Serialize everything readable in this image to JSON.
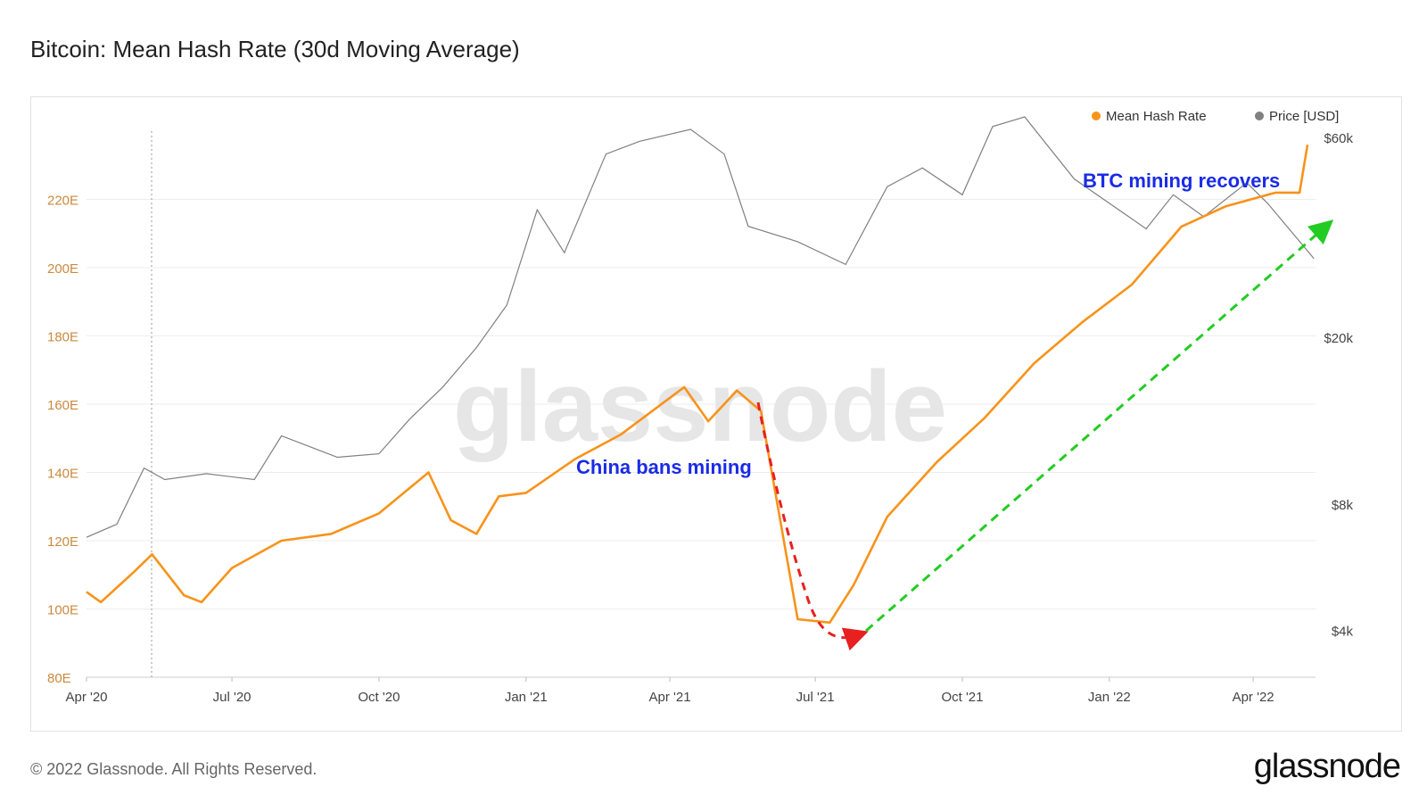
{
  "title": "Bitcoin: Mean Hash Rate (30d Moving Average)",
  "footer": "© 2022 Glassnode. All Rights Reserved.",
  "brand": "glassnode",
  "watermark": "glassnode",
  "colors": {
    "hash_rate": "#f7931a",
    "price": "#808080",
    "left_axis": "#c98a3e",
    "annotation_text": "#1a2be6",
    "red_arrow": "#e82020",
    "green_arrow": "#22cc22"
  },
  "chart_data": {
    "type": "line",
    "x_ticks": [
      "Apr '20",
      "Jul '20",
      "Oct '20",
      "Jan '21",
      "Apr '21",
      "Jul '21",
      "Oct '21",
      "Jan '22",
      "Apr '22"
    ],
    "xlim": [
      "2020-04-01",
      "2022-05-10"
    ],
    "y_left": {
      "ticks": [
        "80E",
        "100E",
        "120E",
        "140E",
        "160E",
        "180E",
        "200E",
        "220E"
      ],
      "ylim": [
        80,
        240
      ]
    },
    "y_right": {
      "ticks": [
        "$4k",
        "$8k",
        "$20k",
        "$60k"
      ],
      "scale": "log"
    },
    "legend": {
      "position": "top-right",
      "entries": [
        "Mean Hash Rate",
        "Price [USD]"
      ]
    },
    "grid": true,
    "series": [
      {
        "name": "Mean Hash Rate",
        "axis": "left",
        "x": [
          "2020-04-01",
          "2020-04-10",
          "2020-05-01",
          "2020-05-12",
          "2020-06-01",
          "2020-06-12",
          "2020-07-01",
          "2020-08-01",
          "2020-09-01",
          "2020-10-01",
          "2020-11-01",
          "2020-11-15",
          "2020-12-01",
          "2020-12-15",
          "2021-01-01",
          "2021-02-01",
          "2021-03-01",
          "2021-04-10",
          "2021-04-25",
          "2021-05-13",
          "2021-05-28",
          "2021-06-20",
          "2021-07-10",
          "2021-07-25",
          "2021-08-15",
          "2021-09-15",
          "2021-10-15",
          "2021-11-15",
          "2021-12-15",
          "2022-01-15",
          "2022-02-15",
          "2022-03-15",
          "2022-04-15",
          "2022-04-30",
          "2022-05-05"
        ],
        "values": [
          105,
          102,
          111,
          116,
          104,
          102,
          112,
          120,
          122,
          128,
          140,
          126,
          122,
          133,
          134,
          144,
          151,
          165,
          155,
          164,
          158,
          97,
          96,
          107,
          127,
          143,
          156,
          172,
          184,
          195,
          212,
          218,
          222,
          222,
          236
        ]
      },
      {
        "name": "Price [USD]",
        "axis": "right",
        "x": [
          "2020-04-01",
          "2020-04-20",
          "2020-05-07",
          "2020-05-20",
          "2020-06-15",
          "2020-07-15",
          "2020-08-01",
          "2020-09-05",
          "2020-10-01",
          "2020-10-20",
          "2020-11-10",
          "2020-12-01",
          "2020-12-20",
          "2021-01-08",
          "2021-01-25",
          "2021-02-20",
          "2021-03-13",
          "2021-04-14",
          "2021-05-05",
          "2021-05-20",
          "2021-06-20",
          "2021-07-20",
          "2021-08-15",
          "2021-09-06",
          "2021-10-01",
          "2021-10-20",
          "2021-11-09",
          "2021-12-10",
          "2022-01-24",
          "2022-02-10",
          "2022-03-01",
          "2022-03-28",
          "2022-04-10",
          "2022-05-09"
        ],
        "values": [
          6700,
          7200,
          9800,
          9200,
          9500,
          9200,
          11700,
          10400,
          10600,
          12800,
          15300,
          19000,
          24000,
          40500,
          32000,
          55000,
          59000,
          63000,
          55000,
          37000,
          34000,
          30000,
          46000,
          51000,
          44000,
          64000,
          67500,
          48000,
          36500,
          44000,
          39000,
          47000,
          42000,
          31000
        ]
      }
    ],
    "annotations": [
      {
        "text": "China bans mining",
        "arrow": "red dashed, from mid-2021 peak down to trough"
      },
      {
        "text": "BTC mining recovers",
        "arrow": "green dashed, from trough up to May 2022"
      }
    ]
  }
}
